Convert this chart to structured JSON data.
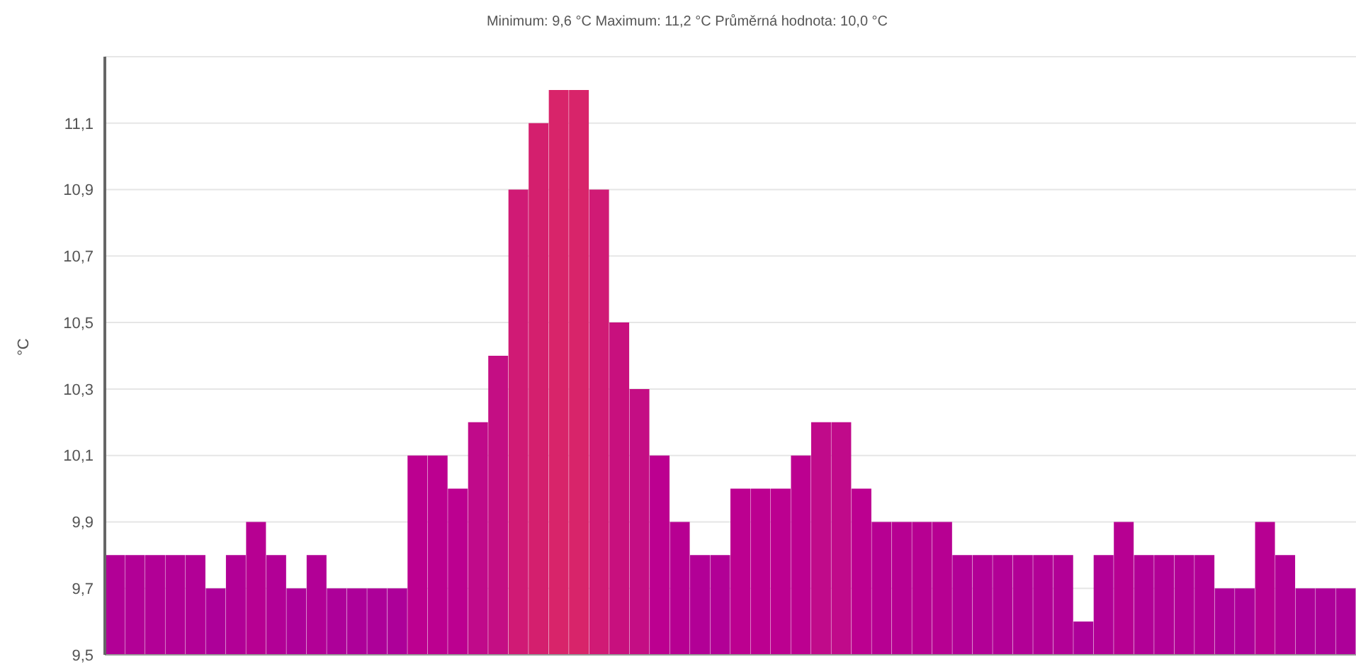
{
  "chart_data": {
    "type": "bar",
    "subtitle": "Minimum: 9,6 °C Maximum: 11,2 °C Průměrná hodnota: 10,0 °C",
    "ylabel": "°C",
    "categories": [
      null,
      null,
      null,
      null,
      null,
      null,
      null,
      null,
      null,
      null,
      null,
      null,
      null,
      null,
      null,
      null,
      null,
      null,
      null,
      null,
      null,
      null,
      null,
      null,
      null,
      null,
      null,
      null,
      null,
      null,
      null,
      null,
      null,
      null,
      null,
      null,
      null,
      null,
      null,
      null,
      null,
      null,
      null,
      null,
      null,
      null,
      null,
      null,
      null,
      null,
      null,
      null,
      null,
      null,
      null,
      null,
      null,
      null,
      null,
      null,
      null,
      null
    ],
    "values": [
      9.8,
      9.8,
      9.8,
      9.8,
      9.8,
      9.7,
      9.8,
      9.9,
      9.8,
      9.7,
      9.8,
      9.7,
      9.7,
      9.7,
      9.7,
      10.1,
      10.1,
      10.0,
      10.2,
      10.4,
      10.9,
      11.1,
      11.2,
      11.2,
      10.9,
      10.5,
      10.3,
      10.1,
      9.9,
      9.8,
      9.8,
      10.0,
      10.0,
      10.0,
      10.1,
      10.2,
      10.2,
      10.0,
      9.9,
      9.9,
      9.9,
      9.9,
      9.8,
      9.8,
      9.8,
      9.8,
      9.8,
      9.8,
      9.6,
      9.8,
      9.9,
      9.8,
      9.8,
      9.8,
      9.8,
      9.7,
      9.7,
      9.9,
      9.8,
      9.7,
      9.7,
      9.7
    ],
    "colors": [
      "#b20096",
      "#b20096",
      "#b20096",
      "#b20096",
      "#b20096",
      "#ad0099",
      "#b20096",
      "#b70092",
      "#b20096",
      "#ad0099",
      "#b20096",
      "#ad0099",
      "#ad0099",
      "#ad0099",
      "#ad0099",
      "#bc0090",
      "#bc0090",
      "#bc0090",
      "#c00a8a",
      "#c40e84",
      "#d01a75",
      "#d41f6e",
      "#d8246a",
      "#d8246a",
      "#d01a75",
      "#c8107e",
      "#c40e84",
      "#bc0090",
      "#b70092",
      "#b20096",
      "#b20096",
      "#bc0090",
      "#bc0090",
      "#bc0090",
      "#bc0090",
      "#c00a8a",
      "#c00a8a",
      "#bc0090",
      "#b70092",
      "#b70092",
      "#b70092",
      "#b70092",
      "#b20096",
      "#b20096",
      "#b20096",
      "#b20096",
      "#b20096",
      "#b20096",
      "#ad0099",
      "#b20096",
      "#b70092",
      "#b20096",
      "#b20096",
      "#b20096",
      "#b20096",
      "#ad0099",
      "#ad0099",
      "#b70092",
      "#b20096",
      "#ad0099",
      "#ad0099",
      "#ad0099"
    ],
    "ylim": [
      9.5,
      11.3
    ],
    "yticks": [
      {
        "value": 9.5,
        "label": "9,5"
      },
      {
        "value": 9.7,
        "label": "9,7"
      },
      {
        "value": 9.9,
        "label": "9,9"
      },
      {
        "value": 10.1,
        "label": "10,1"
      },
      {
        "value": 10.3,
        "label": "10,3"
      },
      {
        "value": 10.5,
        "label": "10,5"
      },
      {
        "value": 10.7,
        "label": "10,7"
      },
      {
        "value": 10.9,
        "label": "10,9"
      },
      {
        "value": 11.1,
        "label": "11,1"
      }
    ],
    "grid": "y"
  }
}
